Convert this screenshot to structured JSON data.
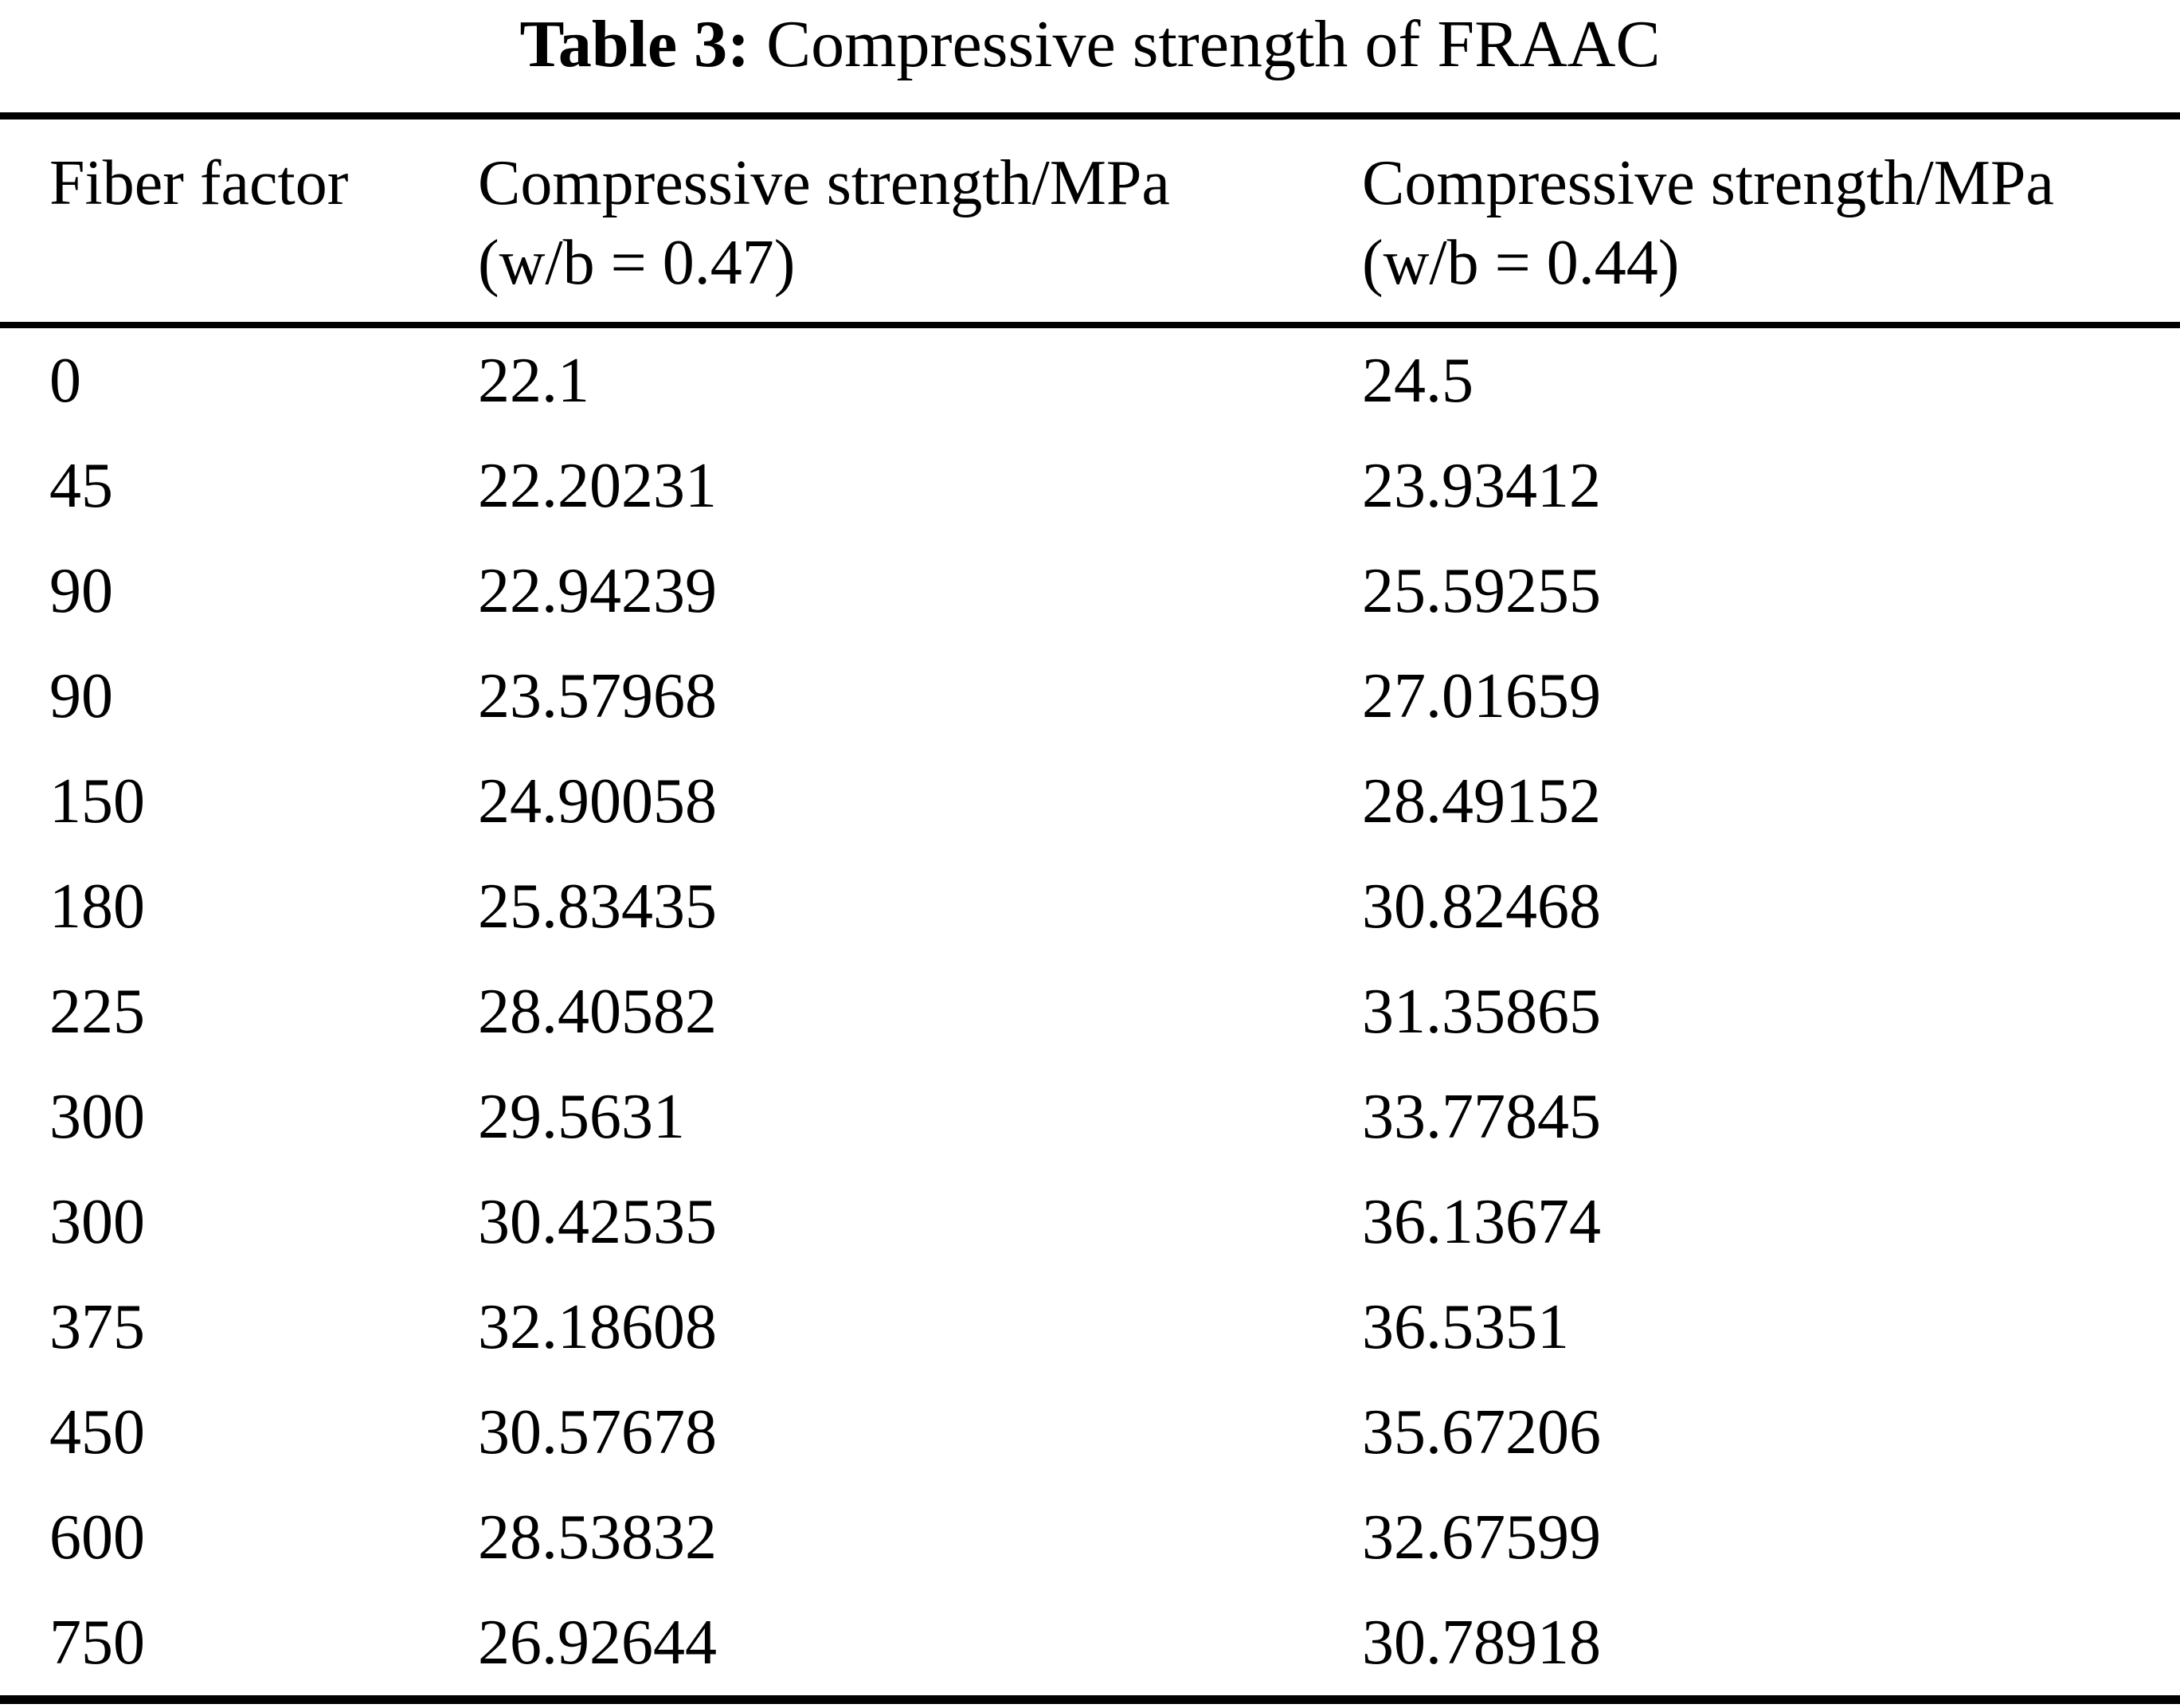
{
  "table": {
    "title_label": "Table 3:",
    "title_text": " Compressive strength of FRAAC",
    "columns": [
      {
        "line1": "Fiber factor",
        "line2": ""
      },
      {
        "line1": "Compressive strength/MPa",
        "line2": "(w/b = 0.47)"
      },
      {
        "line1": "Compressive strength/MPa",
        "line2": "(w/b = 0.44)"
      }
    ],
    "rows": [
      [
        "0",
        "22.1",
        "24.5"
      ],
      [
        "45",
        "22.20231",
        "23.93412"
      ],
      [
        "90",
        "22.94239",
        "25.59255"
      ],
      [
        "90",
        "23.57968",
        "27.01659"
      ],
      [
        "150",
        "24.90058",
        "28.49152"
      ],
      [
        "180",
        "25.83435",
        "30.82468"
      ],
      [
        "225",
        "28.40582",
        "31.35865"
      ],
      [
        "300",
        "29.5631",
        "33.77845"
      ],
      [
        "300",
        "30.42535",
        "36.13674"
      ],
      [
        "375",
        "32.18608",
        "36.5351"
      ],
      [
        "450",
        "30.57678",
        "35.67206"
      ],
      [
        "600",
        "28.53832",
        "32.67599"
      ],
      [
        "750",
        "26.92644",
        "30.78918"
      ]
    ]
  }
}
